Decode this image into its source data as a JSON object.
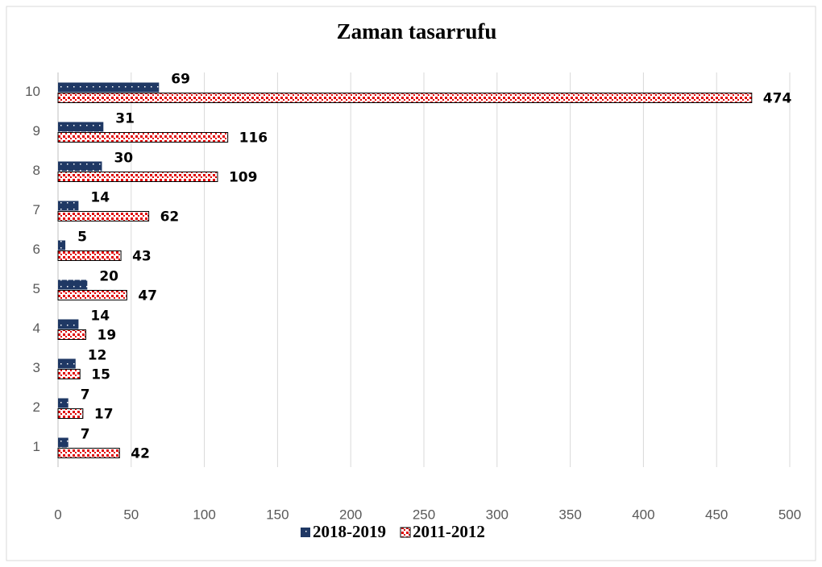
{
  "chart_data": {
    "type": "barh",
    "title": "Zaman tasarrufu",
    "categories": [
      "1",
      "2",
      "3",
      "4",
      "5",
      "6",
      "7",
      "8",
      "9",
      "10"
    ],
    "series": [
      {
        "name": "2018-2019",
        "color": "#1f3864",
        "values": [
          7,
          7,
          12,
          14,
          20,
          5,
          14,
          30,
          31,
          69
        ]
      },
      {
        "name": "2011-2012",
        "color": "#e00000",
        "values": [
          42,
          17,
          15,
          19,
          47,
          43,
          62,
          109,
          116,
          474
        ]
      }
    ],
    "xlim": [
      0,
      500
    ],
    "xticks": [
      0,
      50,
      100,
      150,
      200,
      250,
      300,
      350,
      400,
      450,
      500
    ],
    "grid": true,
    "legend": "bottom"
  }
}
